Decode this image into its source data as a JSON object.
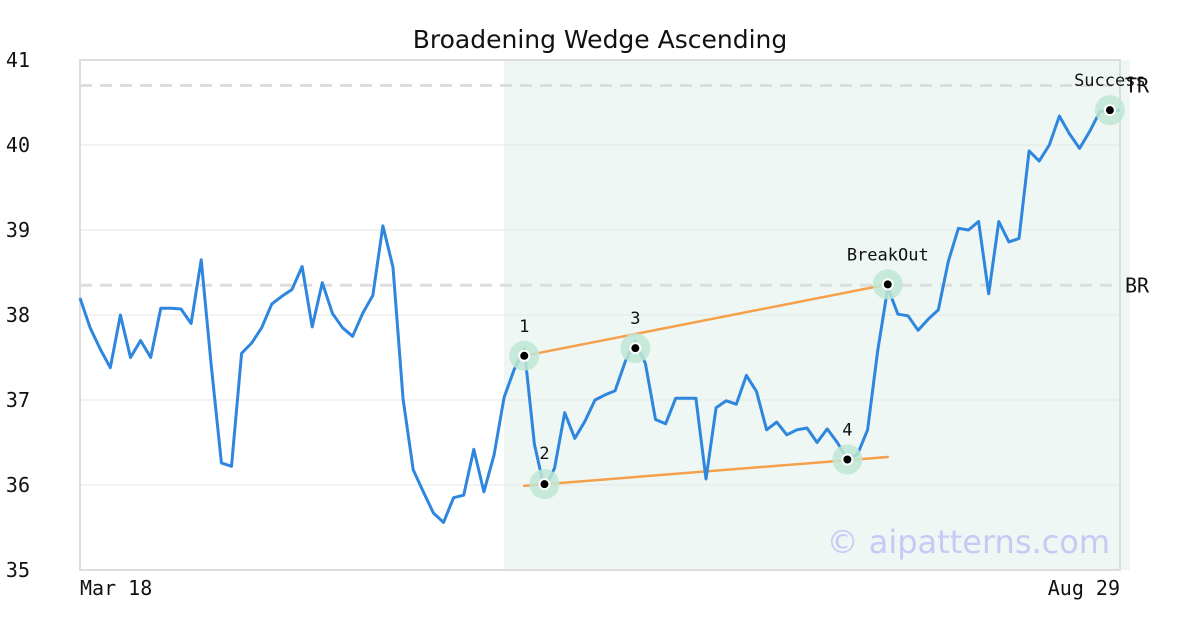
{
  "chart_data": {
    "type": "line",
    "title": "Broadening Wedge Ascending",
    "xlabel": "",
    "ylabel": "",
    "ylim": [
      35,
      41
    ],
    "yticks": [
      35,
      36,
      37,
      38,
      39,
      40,
      41
    ],
    "x_tick_labels": [
      "Mar 18",
      "Aug 29"
    ],
    "grid": true,
    "series": [
      {
        "color": "#2e86de",
        "values": [
          38.2,
          37.85,
          37.6,
          37.38,
          38.0,
          37.5,
          37.7,
          37.5,
          38.08,
          38.08,
          38.07,
          37.9,
          38.65,
          37.4,
          36.26,
          36.22,
          37.55,
          37.67,
          37.85,
          38.13,
          38.22,
          38.3,
          38.57,
          37.86,
          38.38,
          38.02,
          37.85,
          37.75,
          38.02,
          38.23,
          39.05,
          38.56,
          37.01,
          36.18,
          35.92,
          35.67,
          35.56,
          35.85,
          35.88,
          36.42,
          35.92,
          36.35,
          37.03,
          37.36,
          37.6,
          36.48,
          35.95,
          36.2,
          36.85,
          36.55,
          36.75,
          37.0,
          37.06,
          37.11,
          37.45,
          37.69,
          37.43,
          36.77,
          36.72,
          37.02,
          37.02,
          37.02,
          36.07,
          36.91,
          36.99,
          36.95,
          37.29,
          37.1,
          36.65,
          36.74,
          36.59,
          36.65,
          36.67,
          36.5,
          36.66,
          36.5,
          36.3,
          36.36,
          36.65,
          37.58,
          38.32,
          38.01,
          37.99,
          37.82,
          37.95,
          38.06,
          38.63,
          39.02,
          39.0,
          39.1,
          38.25,
          39.1,
          38.86,
          38.9,
          39.93,
          39.81,
          40.0,
          40.34,
          40.13,
          39.96,
          40.16,
          40.39,
          40.41,
          40.41
        ]
      }
    ],
    "highlight_range_index": [
      42,
      104
    ],
    "levels": [
      {
        "label": "TR",
        "value": 40.7
      },
      {
        "label": "BR",
        "value": 38.35
      }
    ],
    "points": [
      {
        "label": "1",
        "index": 44,
        "value": 37.52
      },
      {
        "label": "2",
        "index": 46,
        "value": 36.01
      },
      {
        "label": "3",
        "index": 55,
        "value": 37.61
      },
      {
        "label": "4",
        "index": 76,
        "value": 36.3
      },
      {
        "label": "BreakOut",
        "index": 80,
        "value": 38.36
      },
      {
        "label": "Success",
        "index": 102,
        "value": 40.41
      }
    ],
    "trendlines": [
      {
        "from_index": 44,
        "from_value": 37.52,
        "to_index": 80,
        "to_value": 38.36
      },
      {
        "from_index": 44,
        "from_value": 35.99,
        "to_index": 80,
        "to_value": 36.33
      }
    ],
    "colors": {
      "price_line": "#2e86de",
      "trendline": "#f5a04a",
      "highlight_fill": "#eef7f3",
      "marker_halo": "#bfe6d4",
      "level_line": "#dddddd",
      "grid": "#e6e6e6",
      "frame": "#dddddd"
    },
    "watermark": "© aipatterns.com"
  }
}
